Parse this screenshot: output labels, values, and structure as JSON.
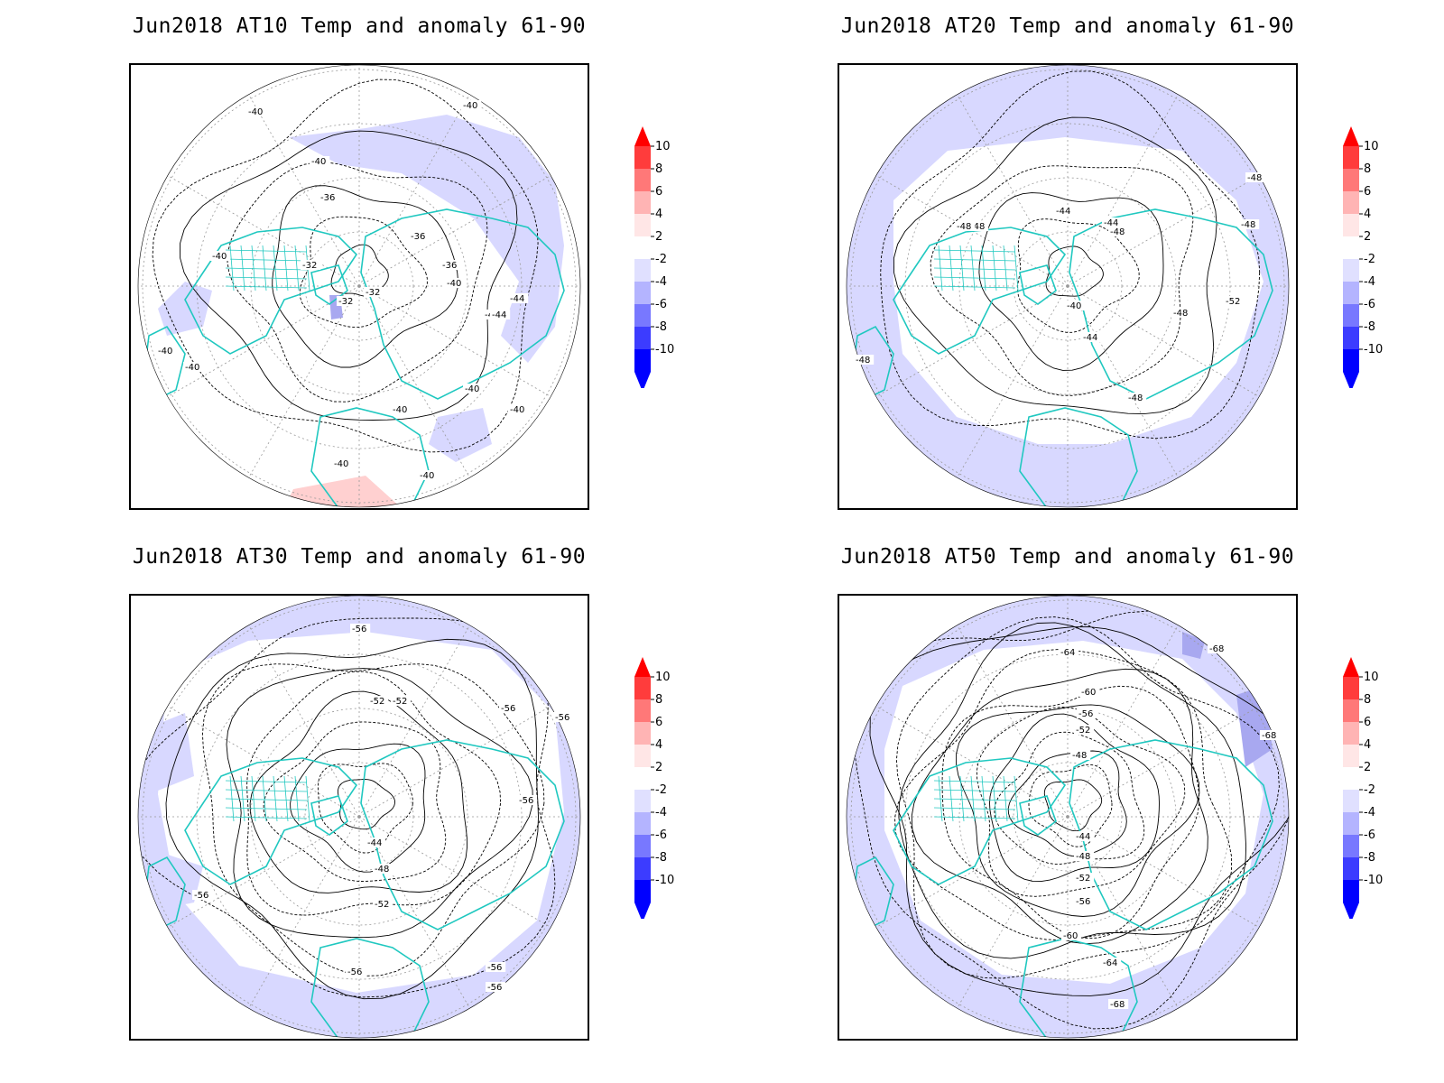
{
  "panels": [
    {
      "title": "Jun2018 AT10 Temp and anomaly 61-90",
      "contour_labels": [
        "-40",
        "-40",
        "-40",
        "-36",
        "-36",
        "-36",
        "-32",
        "-32",
        "-32",
        "-40",
        "-40",
        "-44",
        "-44",
        "-40",
        "-40",
        "-40",
        "-40",
        "-40",
        "-40",
        "-40",
        "-40"
      ],
      "anomaly_shading": "light-blue"
    },
    {
      "title": "Jun2018 AT20 Temp and anomaly 61-90",
      "contour_labels": [
        "-48",
        "-48",
        "-44",
        "-44",
        "-48",
        "-48",
        "-40",
        "-44",
        "-48",
        "-52",
        "-48",
        "-48",
        "-48"
      ],
      "anomaly_shading": "light-blue"
    },
    {
      "title": "Jun2018 AT30 Temp and anomaly 61-90",
      "contour_labels": [
        "-56",
        "-52",
        "-52",
        "-56",
        "-56",
        "-56",
        "-44",
        "-48",
        "-52",
        "-56",
        "-56",
        "-56",
        "-56"
      ],
      "anomaly_shading": "light-blue"
    },
    {
      "title": "Jun2018 AT50 Temp and anomaly 61-90",
      "contour_labels": [
        "-64",
        "-60",
        "-56",
        "-52",
        "-48",
        "-44",
        "-48",
        "-52",
        "-56",
        "-60",
        "-64",
        "-68",
        "-68",
        "-68"
      ],
      "anomaly_shading": "light-blue"
    }
  ],
  "colorbar": {
    "labels": [
      "10",
      "8",
      "6",
      "4",
      "2",
      "-2",
      "-4",
      "-6",
      "-8",
      "-10"
    ],
    "colors": [
      "#ff0000",
      "#ff3c3c",
      "#ff7878",
      "#ffb4b4",
      "#ffe6e6",
      "#ffffff",
      "#e0e0ff",
      "#b4b4ff",
      "#7878ff",
      "#3c3cff",
      "#0000ff"
    ]
  },
  "colors": {
    "coastline": "#20c8c0",
    "anomaly_neg": "#d8d8ff",
    "anomaly_neg_strong": "#a8a8f0",
    "anomaly_pos": "#ffd0d0",
    "contour": "#000000",
    "graticule": "#999999"
  }
}
